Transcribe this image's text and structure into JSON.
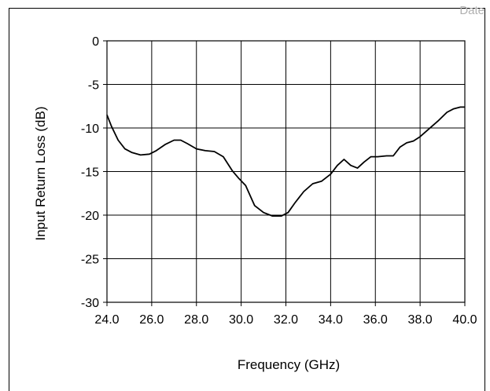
{
  "header": {
    "watermark": "Date"
  },
  "chart_data": {
    "type": "line",
    "title": "",
    "xlabel": "Frequency (GHz)",
    "ylabel": "Input Return Loss (dB)",
    "xlim": [
      24.0,
      40.0
    ],
    "ylim": [
      -30,
      0
    ],
    "x_ticks": [
      "24.0",
      "26.0",
      "28.0",
      "30.0",
      "32.0",
      "34.0",
      "36.0",
      "38.0",
      "40.0"
    ],
    "y_ticks": [
      "0",
      "-5",
      "-10",
      "-15",
      "-20",
      "-25",
      "-30"
    ],
    "grid": true,
    "line_color": "#000000",
    "series": [
      {
        "x": [
          24.0,
          24.2,
          24.5,
          24.8,
          25.1,
          25.5,
          25.9,
          26.2,
          26.6,
          27.0,
          27.3,
          27.6,
          28.0,
          28.4,
          28.8,
          29.2,
          29.6,
          29.9,
          30.2,
          30.6,
          31.0,
          31.4,
          31.8,
          32.1,
          32.4,
          32.8,
          33.2,
          33.6,
          34.0,
          34.3,
          34.6,
          34.9,
          35.2,
          35.5,
          35.8,
          36.1,
          36.5,
          36.8,
          37.1,
          37.4,
          37.7,
          38.0,
          38.4,
          38.8,
          39.2,
          39.5,
          39.8,
          40.0
        ],
        "y": [
          -8.5,
          -9.8,
          -11.4,
          -12.4,
          -12.8,
          -13.1,
          -13.0,
          -12.6,
          -11.9,
          -11.4,
          -11.4,
          -11.8,
          -12.4,
          -12.6,
          -12.7,
          -13.3,
          -14.9,
          -15.8,
          -16.6,
          -18.9,
          -19.7,
          -20.1,
          -20.1,
          -19.7,
          -18.6,
          -17.3,
          -16.4,
          -16.1,
          -15.3,
          -14.3,
          -13.6,
          -14.3,
          -14.6,
          -13.9,
          -13.3,
          -13.3,
          -13.2,
          -13.2,
          -12.2,
          -11.7,
          -11.5,
          -11.0,
          -10.1,
          -9.2,
          -8.2,
          -7.8,
          -7.6,
          -7.6
        ]
      }
    ]
  }
}
